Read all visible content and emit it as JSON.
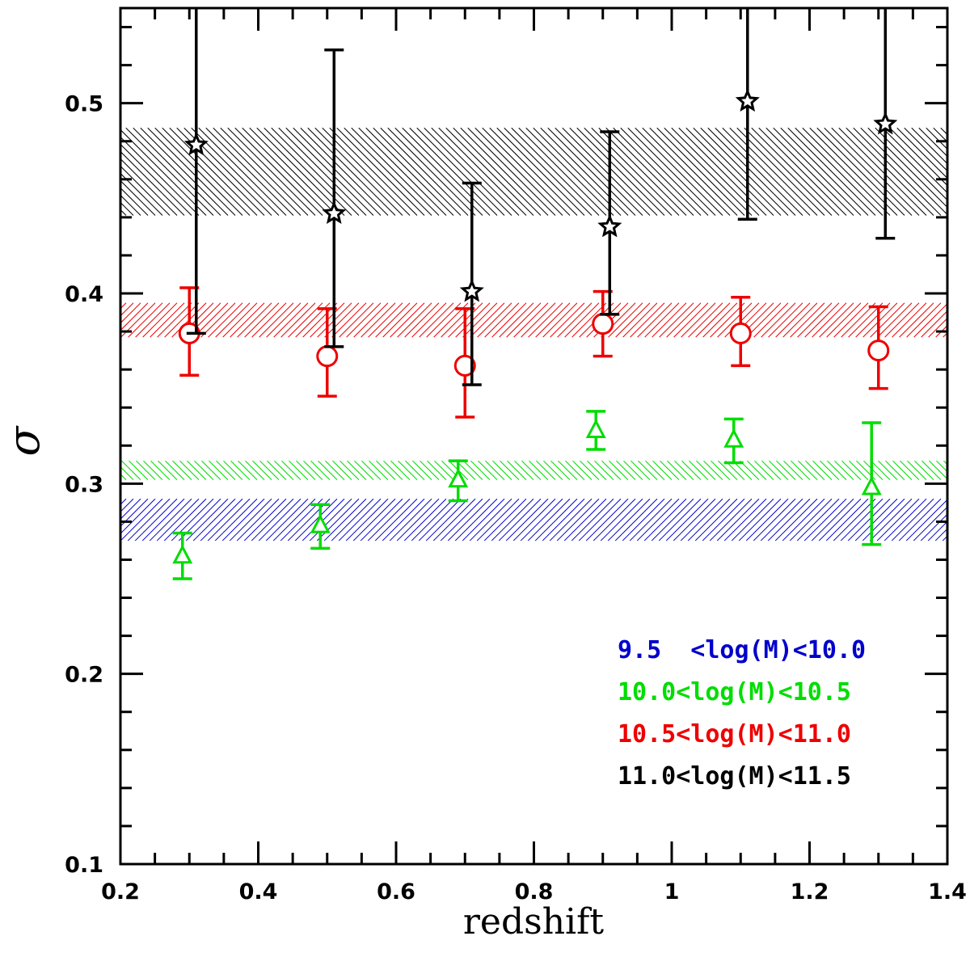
{
  "chart_data": {
    "type": "scatter",
    "title": "",
    "xlabel": "redshift",
    "ylabel": "σ",
    "xlim": [
      0.2,
      1.4
    ],
    "ylim": [
      0.1,
      0.55
    ],
    "x_ticks": [
      0.2,
      0.4,
      0.6,
      0.8,
      1.0,
      1.2,
      1.4
    ],
    "x_tick_labels": [
      "0.2",
      "0.4",
      "0.6",
      "0.8",
      "1",
      "1.2",
      "1.4"
    ],
    "y_ticks": [
      0.1,
      0.2,
      0.3,
      0.4,
      0.5
    ],
    "y_tick_labels": [
      "0.1",
      "0.2",
      "0.3",
      "0.4",
      "0.5"
    ],
    "grid": false,
    "legend_position": "bottom-right",
    "bands": [
      {
        "series": "9.5  <log(M)<10.0",
        "y_low": 0.27,
        "y_high": 0.292,
        "color": "#0000cc",
        "hatch": "forward"
      },
      {
        "series": "10.0<log(M)<10.5",
        "y_low": 0.302,
        "y_high": 0.312,
        "color": "#00dd00",
        "hatch": "back"
      },
      {
        "series": "10.5<log(M)<11.0",
        "y_low": 0.377,
        "y_high": 0.395,
        "color": "#ee0000",
        "hatch": "forward"
      },
      {
        "series": "11.0<log(M)<11.5",
        "y_low": 0.441,
        "y_high": 0.487,
        "color": "#000000",
        "hatch": "back"
      }
    ],
    "series": [
      {
        "name": "10.0<log(M)<10.5",
        "color": "#00dd00",
        "marker": "triangle",
        "x": [
          0.29,
          0.49,
          0.69,
          0.89,
          1.09,
          1.29
        ],
        "y": [
          0.262,
          0.278,
          0.302,
          0.328,
          0.323,
          0.298
        ],
        "err_low": [
          0.25,
          0.266,
          0.291,
          0.318,
          0.311,
          0.268
        ],
        "err_high": [
          0.274,
          0.289,
          0.312,
          0.338,
          0.334,
          0.332
        ]
      },
      {
        "name": "10.5<log(M)<11.0",
        "color": "#ee0000",
        "marker": "circle",
        "x": [
          0.3,
          0.5,
          0.7,
          0.9,
          1.1,
          1.3
        ],
        "y": [
          0.379,
          0.367,
          0.362,
          0.384,
          0.379,
          0.37
        ],
        "err_low": [
          0.357,
          0.346,
          0.335,
          0.367,
          0.362,
          0.35
        ],
        "err_high": [
          0.403,
          0.392,
          0.392,
          0.401,
          0.398,
          0.393
        ]
      },
      {
        "name": "11.0<log(M)<11.5",
        "color": "#000000",
        "marker": "star",
        "x": [
          0.31,
          0.51,
          0.71,
          0.91,
          1.11,
          1.31
        ],
        "y": [
          0.478,
          0.442,
          0.401,
          0.435,
          0.501,
          0.489
        ],
        "err_low": [
          0.379,
          0.372,
          0.352,
          0.389,
          0.439,
          0.429
        ],
        "err_high": [
          0.55,
          0.528,
          0.458,
          0.485,
          0.55,
          0.55
        ]
      }
    ],
    "legend": [
      {
        "label": "9.5  <log(M)<10.0",
        "color": "#0000cc"
      },
      {
        "label": "10.0<log(M)<10.5",
        "color": "#00dd00"
      },
      {
        "label": "10.5<log(M)<11.0",
        "color": "#ee0000"
      },
      {
        "label": "11.0<log(M)<11.5",
        "color": "#000000"
      }
    ]
  }
}
